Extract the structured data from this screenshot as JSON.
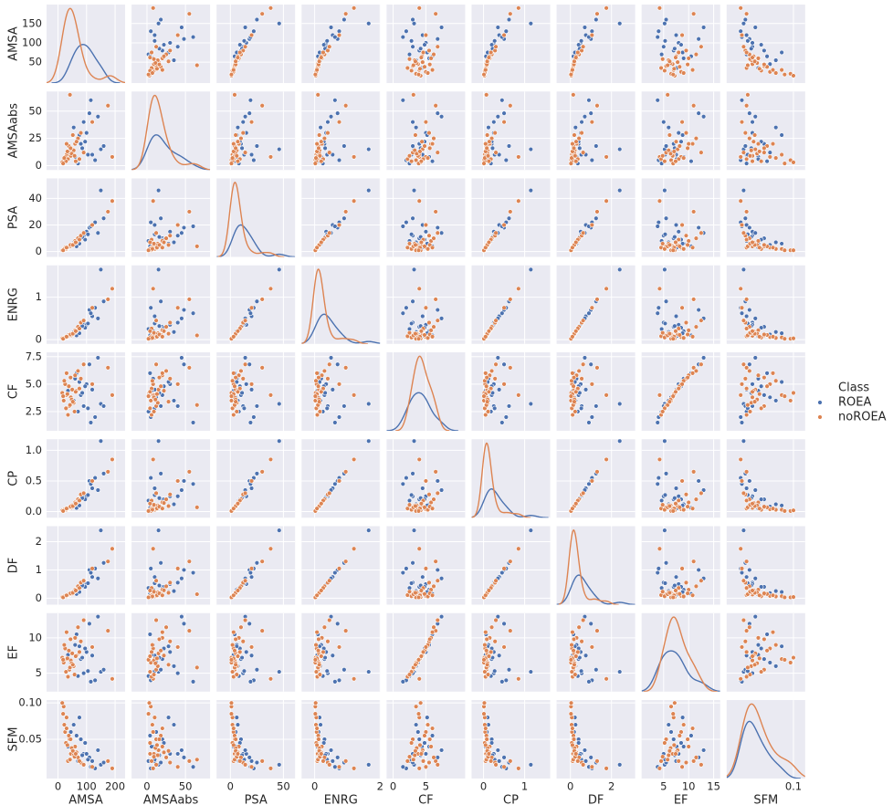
{
  "chart_data": {
    "type": "pairplot",
    "legend_title": "Class",
    "legend_position": "right",
    "grid": true,
    "variables": [
      {
        "name": "AMSA",
        "xlim": [
          -40,
          235
        ],
        "xticks": [
          0,
          100,
          200
        ],
        "ylim": [
          -4,
          199
        ],
        "yticks": [
          50,
          100,
          150
        ]
      },
      {
        "name": "AMSAabs",
        "xlim": [
          -20,
          82
        ],
        "xticks": [
          0,
          50
        ],
        "ylim": [
          -4,
          68
        ],
        "yticks": [
          0,
          25,
          50
        ]
      },
      {
        "name": "PSA",
        "xlim": [
          -13,
          61
        ],
        "xticks": [
          0,
          50
        ],
        "ylim": [
          -4,
          55
        ],
        "yticks": [
          0,
          20,
          40
        ]
      },
      {
        "name": "ENRG",
        "xlim": [
          -0.4,
          2.0
        ],
        "xticks": [
          0,
          2
        ],
        "ylim": [
          -0.1,
          1.75
        ],
        "yticks": [
          0,
          1
        ]
      },
      {
        "name": "CF",
        "xlim": [
          -1,
          11
        ],
        "xticks": [
          0,
          5
        ],
        "ylim": [
          0.75,
          7.9
        ],
        "yticks": [
          2.5,
          {
            "value": 5,
            "label": "5.0"
          },
          7.5
        ]
      },
      {
        "name": "CP",
        "xlim": [
          -0.29,
          1.62
        ],
        "xticks": [
          0,
          1
        ],
        "ylim": [
          -0.1,
          1.18
        ],
        "yticks": [
          {
            "value": 0,
            "label": "0.0"
          },
          0.5,
          {
            "value": 1,
            "label": "1.0"
          }
        ]
      },
      {
        "name": "DF",
        "xlim": [
          -0.67,
          3.15
        ],
        "xticks": [
          0,
          2
        ],
        "ylim": [
          -0.23,
          2.55
        ],
        "yticks": [
          0,
          1,
          2
        ]
      },
      {
        "name": "EF",
        "xlim": [
          0.6,
          16.3
        ],
        "xticks": [
          5,
          10,
          15
        ],
        "ylim": [
          2.4,
          13.5
        ],
        "yticks": [
          5,
          10
        ]
      },
      {
        "name": "SFM",
        "xlim": [
          -0.014,
          0.12
        ],
        "xticks": [
          0.1
        ],
        "ylim": [
          -0.004,
          0.104
        ],
        "yticks": [
          0.05,
          {
            "value": 0.1,
            "label": "0.10"
          }
        ]
      }
    ],
    "series": [
      {
        "name": "ROEA",
        "color": "#4c72b0",
        "values": [
          [
            120,
            10,
            20,
            0.55,
            4.5,
            0.38,
            0.75,
            7.5,
            0.02
          ],
          [
            150,
            15,
            46,
            1.65,
            3.2,
            1.15,
            2.4,
            5.2,
            0.015
          ],
          [
            90,
            40,
            12,
            0.4,
            3.0,
            0.25,
            0.55,
            5.0,
            0.03
          ],
          [
            60,
            8,
            6,
            0.2,
            5.5,
            0.12,
            0.3,
            9.0,
            0.04
          ],
          [
            110,
            48,
            18,
            0.7,
            6.8,
            0.5,
            1.0,
            12.0,
            0.025
          ],
          [
            80,
            20,
            10,
            0.3,
            4.0,
            0.2,
            0.4,
            7.0,
            0.05
          ],
          [
            130,
            5,
            22,
            0.75,
            2.0,
            0.55,
            1.05,
            4.0,
            0.01
          ],
          [
            100,
            30,
            15,
            0.35,
            5.0,
            0.25,
            0.5,
            8.0,
            0.03
          ],
          [
            45,
            12,
            5,
            0.12,
            3.8,
            0.08,
            0.18,
            6.5,
            0.06
          ],
          [
            70,
            2,
            8,
            0.25,
            2.5,
            0.18,
            0.36,
            4.6,
            0.02
          ],
          [
            140,
            45,
            14,
            0.5,
            7.4,
            0.35,
            0.7,
            13.0,
            0.035
          ],
          [
            95,
            22,
            9,
            0.28,
            4.8,
            0.2,
            0.4,
            8.5,
            0.045
          ],
          [
            55,
            35,
            7,
            0.18,
            3.5,
            0.12,
            0.25,
            6.0,
            0.07
          ],
          [
            85,
            16,
            11,
            0.32,
            4.2,
            0.22,
            0.45,
            7.2,
            0.028
          ],
          [
            115,
            60,
            19,
            0.62,
            1.5,
            0.45,
            0.9,
            3.8,
            0.012
          ],
          [
            65,
            4,
            4,
            0.1,
            6.0,
            0.06,
            0.15,
            10.5,
            0.055
          ],
          [
            160,
            18,
            25,
            0.9,
            3.0,
            0.62,
            1.25,
            5.5,
            0.018
          ],
          [
            75,
            28,
            6,
            0.15,
            5.2,
            0.1,
            0.22,
            8.8,
            0.08
          ],
          [
            105,
            10,
            13,
            0.38,
            2.8,
            0.27,
            0.53,
            5.3,
            0.022
          ],
          [
            35,
            6,
            3,
            0.08,
            4.4,
            0.05,
            0.12,
            7.6,
            0.04
          ]
        ]
      },
      {
        "name": "noROEA",
        "color": "#dd8452",
        "values": [
          [
            190,
            8,
            38,
            1.2,
            4.0,
            0.85,
            1.75,
            4.2,
            0.01
          ],
          [
            175,
            55,
            30,
            0.95,
            6.5,
            0.65,
            1.3,
            11.0,
            0.02
          ],
          [
            20,
            5,
            1,
            0.02,
            3.5,
            0.01,
            0.03,
            6.5,
            0.095
          ],
          [
            30,
            10,
            2,
            0.05,
            4.0,
            0.03,
            0.07,
            7.0,
            0.08
          ],
          [
            40,
            12,
            4,
            0.1,
            3.0,
            0.07,
            0.14,
            5.5,
            0.05
          ],
          [
            25,
            8,
            3,
            0.06,
            5.0,
            0.04,
            0.08,
            8.5,
            0.06
          ],
          [
            50,
            15,
            5,
            0.13,
            4.5,
            0.09,
            0.18,
            7.8,
            0.035
          ],
          [
            35,
            6,
            3,
            0.08,
            2.2,
            0.05,
            0.11,
            4.5,
            0.02
          ],
          [
            60,
            20,
            8,
            0.22,
            5.8,
            0.15,
            0.3,
            10.0,
            0.04
          ],
          [
            45,
            9,
            4,
            0.09,
            3.8,
            0.06,
            0.13,
            6.8,
            0.03
          ],
          [
            15,
            3,
            1,
            0.03,
            4.2,
            0.02,
            0.04,
            7.2,
            0.1
          ],
          [
            70,
            25,
            10,
            0.3,
            6.2,
            0.2,
            0.42,
            11.5,
            0.025
          ],
          [
            55,
            14,
            6,
            0.15,
            3.3,
            0.1,
            0.21,
            6.0,
            0.028
          ],
          [
            80,
            30,
            12,
            0.4,
            5.5,
            0.28,
            0.55,
            9.5,
            0.018
          ],
          [
            28,
            4,
            2,
            0.05,
            2.8,
            0.03,
            0.07,
            5.2,
            0.045
          ],
          [
            38,
            18,
            4,
            0.11,
            4.8,
            0.07,
            0.15,
            8.2,
            0.055
          ],
          [
            48,
            11,
            5,
            0.14,
            3.6,
            0.1,
            0.2,
            6.4,
            0.038
          ],
          [
            65,
            22,
            7,
            0.2,
            4.4,
            0.14,
            0.28,
            7.5,
            0.032
          ],
          [
            22,
            7,
            2,
            0.04,
            5.3,
            0.03,
            0.06,
            9.0,
            0.07
          ],
          [
            42,
            65,
            4,
            0.1,
            3.1,
            0.07,
            0.14,
            5.8,
            0.022
          ],
          [
            33,
            13,
            3,
            0.07,
            4.1,
            0.05,
            0.1,
            7.1,
            0.042
          ],
          [
            90,
            12,
            14,
            0.45,
            6.8,
            0.3,
            0.62,
            12.5,
            0.015
          ],
          [
            58,
            9,
            6,
            0.16,
            2.5,
            0.11,
            0.23,
            4.8,
            0.026
          ],
          [
            18,
            2,
            1,
            0.02,
            3.9,
            0.01,
            0.03,
            6.9,
            0.085
          ],
          [
            44,
            16,
            5,
            0.12,
            5.6,
            0.08,
            0.17,
            9.8,
            0.05
          ],
          [
            75,
            6,
            9,
            0.26,
            4.6,
            0.18,
            0.36,
            8.0,
            0.02
          ],
          [
            52,
            28,
            5,
            0.14,
            3.4,
            0.09,
            0.19,
            6.2,
            0.034
          ],
          [
            120,
            40,
            20,
            0.75,
            5.0,
            0.5,
            1.05,
            8.7,
            0.012
          ],
          [
            30,
            20,
            3,
            0.07,
            6.0,
            0.05,
            0.1,
            10.8,
            0.065
          ],
          [
            62,
            4,
            7,
            0.2,
            4.3,
            0.13,
            0.27,
            7.4,
            0.03
          ]
        ]
      }
    ]
  }
}
